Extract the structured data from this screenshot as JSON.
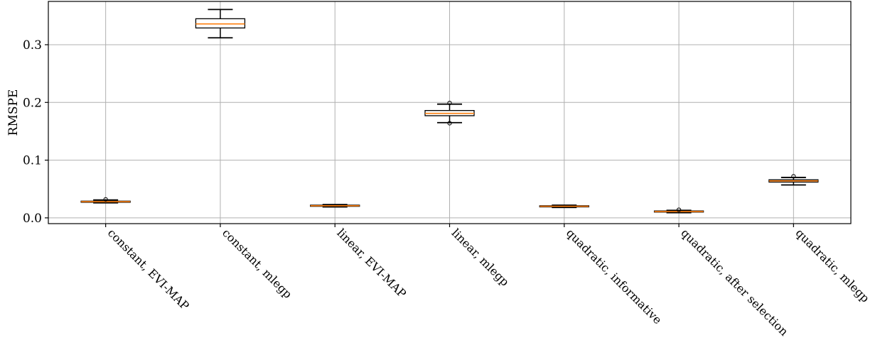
{
  "chart_data": {
    "type": "box",
    "ylabel": "RMSPE",
    "ylim": [
      -0.01,
      0.375
    ],
    "yticks": [
      0.0,
      0.1,
      0.2,
      0.3
    ],
    "ytick_labels": [
      "0.0",
      "0.1",
      "0.2",
      "0.3"
    ],
    "grid": true,
    "categories": [
      "constant, EVI-MAP",
      "constant, mlegp",
      "linear, EVI-MAP",
      "linear, mlegp",
      "quadratic, informative",
      "quadratic, after selection",
      "quadratic, mlegp"
    ],
    "boxes": [
      {
        "whisker_low": 0.026,
        "q1": 0.027,
        "median": 0.028,
        "q3": 0.029,
        "whisker_high": 0.031,
        "outliers": [
          0.032
        ]
      },
      {
        "whisker_low": 0.312,
        "q1": 0.329,
        "median": 0.336,
        "q3": 0.345,
        "whisker_high": 0.361,
        "outliers": []
      },
      {
        "whisker_low": 0.019,
        "q1": 0.02,
        "median": 0.021,
        "q3": 0.022,
        "whisker_high": 0.023,
        "outliers": []
      },
      {
        "whisker_low": 0.165,
        "q1": 0.177,
        "median": 0.181,
        "q3": 0.186,
        "whisker_high": 0.197,
        "outliers": [
          0.164,
          0.199
        ]
      },
      {
        "whisker_low": 0.018,
        "q1": 0.019,
        "median": 0.02,
        "q3": 0.021,
        "whisker_high": 0.022,
        "outliers": []
      },
      {
        "whisker_low": 0.009,
        "q1": 0.01,
        "median": 0.011,
        "q3": 0.012,
        "whisker_high": 0.013,
        "outliers": [
          0.014
        ]
      },
      {
        "whisker_low": 0.057,
        "q1": 0.062,
        "median": 0.064,
        "q3": 0.066,
        "whisker_high": 0.07,
        "outliers": [
          0.072
        ]
      }
    ],
    "colors": {
      "median": "#ff7f0e",
      "box": "#000000",
      "grid": "#b0b0b0"
    }
  }
}
